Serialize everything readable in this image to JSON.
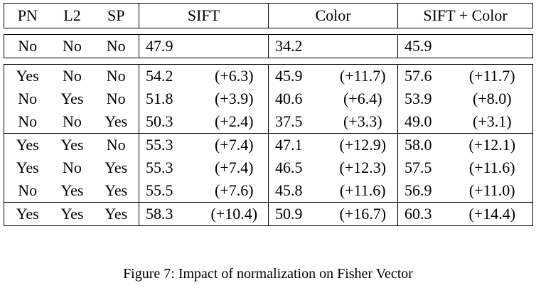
{
  "table": {
    "headers": [
      "PN",
      "L2",
      "SP",
      "SIFT",
      "Color",
      "SIFT + Color"
    ],
    "baseline": {
      "pn": "No",
      "l2": "No",
      "sp": "No",
      "sift": "47.9",
      "color": "34.2",
      "siftcolor": "45.9"
    },
    "single": [
      {
        "pn": "Yes",
        "l2": "No",
        "sp": "No",
        "sift": "54.2",
        "sift_d": "(+6.3)",
        "color": "45.9",
        "color_d": "(+11.7)",
        "sc": "57.6",
        "sc_d": "(+11.7)"
      },
      {
        "pn": "No",
        "l2": "Yes",
        "sp": "No",
        "sift": "51.8",
        "sift_d": "(+3.9)",
        "color": "40.6",
        "color_d": "(+6.4)",
        "sc": "53.9",
        "sc_d": "(+8.0)"
      },
      {
        "pn": "No",
        "l2": "No",
        "sp": "Yes",
        "sift": "50.3",
        "sift_d": "(+2.4)",
        "color": "37.5",
        "color_d": "(+3.3)",
        "sc": "49.0",
        "sc_d": "(+3.1)"
      }
    ],
    "pairs": [
      {
        "pn": "Yes",
        "l2": "Yes",
        "sp": "No",
        "sift": "55.3",
        "sift_d": "(+7.4)",
        "color": "47.1",
        "color_d": "(+12.9)",
        "sc": "58.0",
        "sc_d": "(+12.1)"
      },
      {
        "pn": "Yes",
        "l2": "No",
        "sp": "Yes",
        "sift": "55.3",
        "sift_d": "(+7.4)",
        "color": "46.5",
        "color_d": "(+12.3)",
        "sc": "57.5",
        "sc_d": "(+11.6)"
      },
      {
        "pn": "No",
        "l2": "Yes",
        "sp": "Yes",
        "sift": "55.5",
        "sift_d": "(+7.6)",
        "color": "45.8",
        "color_d": "(+11.6)",
        "sc": "56.9",
        "sc_d": "(+11.0)"
      }
    ],
    "all": {
      "pn": "Yes",
      "l2": "Yes",
      "sp": "Yes",
      "sift": "58.3",
      "sift_d": "(+10.4)",
      "color": "50.9",
      "color_d": "(+16.7)",
      "sc": "60.3",
      "sc_d": "(+14.4)"
    }
  },
  "caption": "Figure 7: Impact of normalization on Fisher Vector"
}
